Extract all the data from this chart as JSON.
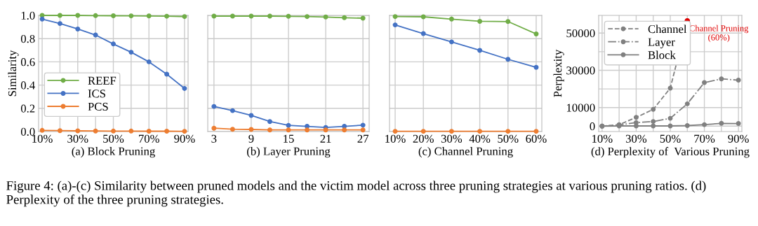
{
  "chart_data": [
    {
      "type": "line",
      "xlabel": "(a) Block Pruning",
      "ylabel": "Similarity",
      "categories": [
        "10%",
        null,
        "30%",
        null,
        "50%",
        null,
        "70%",
        null,
        "90%"
      ],
      "series": [
        {
          "name": "REEF",
          "color": "#70ad47",
          "values": [
            1.0,
            1.0,
            1.0,
            0.998,
            0.997,
            0.996,
            0.995,
            0.993,
            0.99
          ]
        },
        {
          "name": "ICS",
          "color": "#4472c4",
          "values": [
            0.968,
            0.93,
            0.883,
            0.831,
            0.754,
            0.683,
            0.6,
            0.494,
            0.371
          ]
        },
        {
          "name": "PCS",
          "color": "#ed7d31",
          "values": [
            0.01,
            0.008,
            0.006,
            0.005,
            0.004,
            0.004,
            0.003,
            0.003,
            0.002
          ]
        }
      ],
      "ylim": [
        0,
        1.0
      ],
      "yticks": [
        {
          "value": 0,
          "label": "0.0"
        },
        0.2,
        0.4,
        0.6,
        0.8,
        {
          "value": 1,
          "label": "1.0"
        }
      ],
      "grid": true,
      "legend": "bottom left",
      "marker": "circle",
      "line_style": "solid",
      "annotations": [
        "Figure 4: (a)-(c) Similarity between pruned models and the victim model across three pruning strategies at various pruning ratios. (d) Perplexity of the three pruning strategies."
      ]
    },
    {
      "type": "line",
      "xlabel": "(b) Layer Pruning",
      "x": [
        3,
        6,
        9,
        12,
        15,
        18,
        21,
        24,
        27
      ],
      "series": [
        {
          "color": "#70ad47",
          "values": [
            0.994,
            0.994,
            0.994,
            0.994,
            0.992,
            0.99,
            0.986,
            0.98,
            0.976
          ]
        },
        {
          "color": "#4472c4",
          "values": [
            0.216,
            0.18,
            0.139,
            0.086,
            0.053,
            0.045,
            0.035,
            0.045,
            0.055
          ]
        },
        {
          "color": "#ed7d31",
          "values": [
            0.029,
            0.02,
            0.018,
            0.014,
            0.014,
            0.014,
            0.014,
            0.014,
            0.014
          ]
        }
      ],
      "xlim": [
        2,
        28
      ],
      "xticks": [
        3,
        9,
        15,
        21,
        27
      ],
      "ylim": [
        0,
        1.0
      ],
      "yticks": [
        0,
        0.2,
        0.4,
        0.6,
        0.8,
        1.0
      ],
      "tick_labels": "x",
      "grid": true,
      "marker": "circle",
      "line_style": "solid"
    },
    {
      "type": "line",
      "xlabel": "(c) Channel Pruning",
      "categories": [
        "10%",
        "20%",
        "30%",
        "40%",
        "50%",
        "60%"
      ],
      "series": [
        {
          "color": "#70ad47",
          "values": [
            0.99,
            0.988,
            0.968,
            0.949,
            0.947,
            0.84
          ]
        },
        {
          "color": "#4472c4",
          "values": [
            0.918,
            0.843,
            0.772,
            0.699,
            0.622,
            0.553
          ]
        },
        {
          "color": "#ed7d31",
          "values": [
            0.002,
            0.002,
            0.002,
            0.002,
            0.002,
            0.002
          ]
        }
      ],
      "ylim": [
        0,
        1.0
      ],
      "yticks": [
        0,
        0.2,
        0.4,
        0.6,
        0.8,
        1.0
      ],
      "tick_labels": "x",
      "grid": true,
      "marker": "circle",
      "line_style": "solid"
    },
    {
      "type": "line",
      "xlabel": "(d) Perplexity of  Various Pruning",
      "ylabel": "Perplexity",
      "categories": [
        "10%",
        null,
        "30%",
        null,
        "50%",
        null,
        "70%",
        null,
        "90%"
      ],
      "series": [
        {
          "name": "Channel",
          "color": "#808080",
          "colors": [
            "#808080",
            "#808080",
            "#808080",
            "#808080",
            "#808080",
            "#e00000",
            null,
            null,
            null
          ],
          "line_style": "dashed",
          "values": [
            0,
            800,
            4700,
            9000,
            20400,
            56600,
            null,
            null,
            null
          ]
        },
        {
          "name": "Layer",
          "color": "#808080",
          "line_style": "dashdot",
          "values": [
            0,
            600,
            1900,
            2500,
            4200,
            12000,
            23400,
            25400,
            24700
          ]
        },
        {
          "name": "Block",
          "color": "#808080",
          "line_style": "solid",
          "values": [
            0,
            100,
            100,
            100,
            100,
            300,
            800,
            1500,
            1400
          ]
        }
      ],
      "ylim": [
        -2900,
        59500
      ],
      "yticks": [
        0,
        10000,
        {
          "value": 20000,
          "label": null
        },
        30000,
        {
          "value": 40000,
          "label": null
        },
        50000
      ],
      "grid": true,
      "legend": "top left",
      "marker": "circle",
      "annotations": [
        "Channel Pruning\n(60%)"
      ]
    }
  ]
}
